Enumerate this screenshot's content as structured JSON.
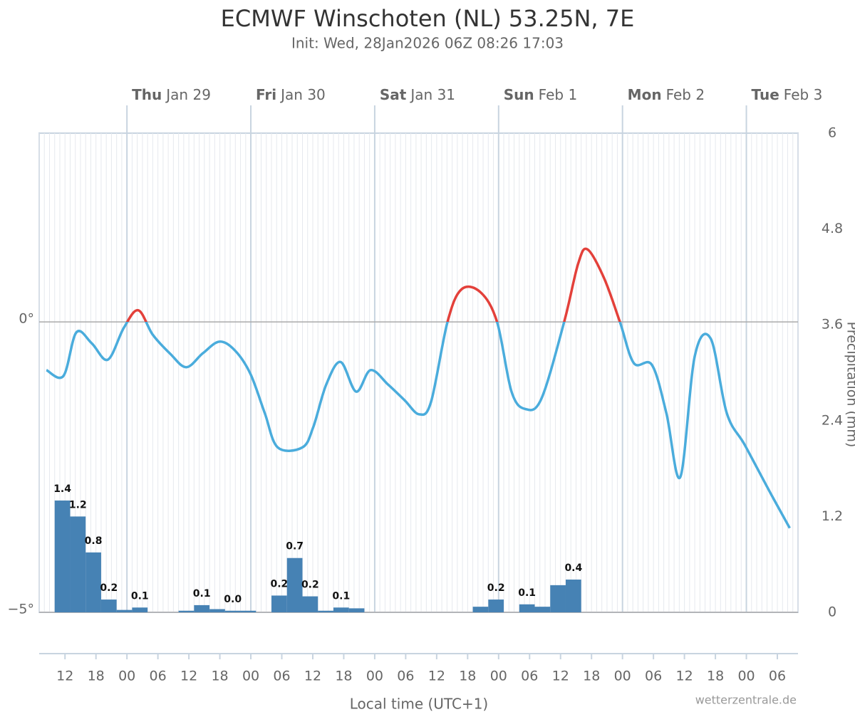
{
  "chart_data": {
    "type": "line",
    "title": "ECMWF Winschoten (NL) 53.25N, 7E",
    "subtitle": "Init: Wed, 28Jan2026 06Z 08:26 17:03",
    "x_label": "Local time (UTC+1)",
    "y2_label": "Precipitation (mm)",
    "credit": "wetterzentrale.de",
    "xlim": [
      7,
      154
    ],
    "xticks": [
      12,
      18,
      {
        "value": 24,
        "label": "00"
      },
      {
        "value": 30,
        "label": "06"
      },
      {
        "value": 36,
        "label": "12"
      },
      {
        "value": 42,
        "label": "18"
      },
      {
        "value": 48,
        "label": "00"
      },
      {
        "value": 54,
        "label": "06"
      },
      {
        "value": 60,
        "label": "12"
      },
      {
        "value": 66,
        "label": "18"
      },
      {
        "value": 72,
        "label": "00"
      },
      {
        "value": 78,
        "label": "06"
      },
      {
        "value": 84,
        "label": "12"
      },
      {
        "value": 90,
        "label": "18"
      },
      {
        "value": 96,
        "label": "00"
      },
      {
        "value": 102,
        "label": "06"
      },
      {
        "value": 108,
        "label": "12"
      },
      {
        "value": 114,
        "label": "18"
      },
      {
        "value": 120,
        "label": "00"
      },
      {
        "value": 126,
        "label": "06"
      },
      {
        "value": 132,
        "label": "12"
      },
      {
        "value": 138,
        "label": "18"
      },
      {
        "value": 144,
        "label": "00"
      },
      {
        "value": 150,
        "label": "06"
      }
    ],
    "day_ticks": [
      {
        "value": 24,
        "day": "Thu",
        "date": "Jan 29"
      },
      {
        "value": 48,
        "day": "Fri",
        "date": "Jan 30"
      },
      {
        "value": 72,
        "day": "Sat",
        "date": "Jan 31"
      },
      {
        "value": 96,
        "day": "Sun",
        "date": "Feb 1"
      },
      {
        "value": 120,
        "day": "Mon",
        "date": "Feb 2"
      },
      {
        "value": 144,
        "day": "Tue",
        "date": "Feb 3"
      }
    ],
    "ylim": [
      -5,
      3.25
    ],
    "yticks": [
      {
        "value": -5,
        "label": "−5°"
      },
      {
        "value": 0,
        "label": "0°"
      }
    ],
    "y2lim": [
      0,
      6
    ],
    "y2ticks": [
      0,
      1.2,
      2.4,
      3.6,
      4.8,
      6
    ],
    "grid": true,
    "series": [
      {
        "type": "line",
        "color": "#4aacdc",
        "warm_color": "#e3403a",
        "x": [
          8.4,
          11.7,
          14.2,
          17.2,
          20.3,
          23.4,
          26.2,
          29,
          32.4,
          35.5,
          38.7,
          41.9,
          44.9,
          47.9,
          50.7,
          53.2,
          58,
          60.1,
          62.6,
          65.4,
          68.4,
          71.2,
          74.6,
          77.8,
          80.6,
          82.9,
          86.1,
          88.8,
          92.5,
          95.7,
          98.5,
          101.2,
          104.3,
          108.7,
          111.4,
          113.2,
          116.4,
          119.5,
          122.2,
          125.7,
          128.5,
          131.2,
          134,
          137.1,
          140.2,
          143.7,
          148.5,
          152.4
        ],
        "values": [
          -0.83,
          -0.93,
          -0.18,
          -0.37,
          -0.65,
          -0.1,
          0.2,
          -0.22,
          -0.55,
          -0.78,
          -0.54,
          -0.34,
          -0.49,
          -0.89,
          -1.57,
          -2.16,
          -2.16,
          -1.81,
          -1.08,
          -0.69,
          -1.2,
          -0.83,
          -1.08,
          -1.35,
          -1.59,
          -1.38,
          0,
          0.56,
          0.51,
          0,
          -1.2,
          -1.5,
          -1.32,
          0,
          1.0,
          1.25,
          0.76,
          0,
          -0.71,
          -0.74,
          -1.57,
          -2.67,
          -0.59,
          -0.29,
          -1.57,
          -2.12,
          -2.92,
          -3.55
        ]
      },
      {
        "type": "bar",
        "axis": "y2",
        "color": "#4682b4",
        "x": [
          11.5,
          14.5,
          17.5,
          20.5,
          23.5,
          26.5,
          35.5,
          38.5,
          41.5,
          44.5,
          47.5,
          53.5,
          56.5,
          59.5,
          62.5,
          65.5,
          68.5,
          92.5,
          95.5,
          101.5,
          104.5,
          107.5,
          110.5
        ],
        "values": [
          1.4,
          1.2,
          0.75,
          0.16,
          0.03,
          0.06,
          0.02,
          0.09,
          0.04,
          0.02,
          0.02,
          0.21,
          0.68,
          0.2,
          0.02,
          0.06,
          0.05,
          0.07,
          0.16,
          0.1,
          0.07,
          0.34,
          0.41
        ],
        "value_labels": [
          "1.4",
          "1.2",
          "0.8",
          "0.2",
          null,
          "0.1",
          null,
          "0.1",
          null,
          "0.0",
          null,
          "0.2",
          "0.7",
          "0.2",
          null,
          "0.1",
          null,
          null,
          "0.2",
          "0.1",
          null,
          null,
          "0.4"
        ]
      }
    ]
  }
}
